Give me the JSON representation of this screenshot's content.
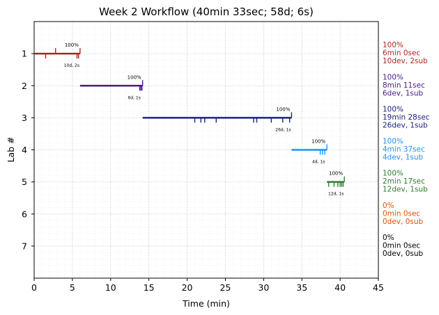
{
  "chart_data": {
    "type": "timeline",
    "title": "Week 2 Workflow (40min 33sec; 58d; 6s)",
    "xlabel": "Time (min)",
    "ylabel": "Lab #",
    "xlim": [
      0,
      45
    ],
    "ylim": [
      8,
      0
    ],
    "xticks": [
      0,
      5,
      10,
      15,
      20,
      25,
      30,
      35,
      40,
      45
    ],
    "yticks": [
      1,
      2,
      3,
      4,
      5,
      6,
      7
    ],
    "grid": true,
    "labs": [
      {
        "lab": 1,
        "color": "#b22222",
        "start": 0,
        "end": 6.0,
        "pct_label": "100%",
        "count_label": "10d, 2s",
        "summary": [
          "100%",
          "6min 0sec",
          "10dev, 2sub"
        ],
        "dev_ticks": [
          1.5,
          5.6,
          5.8
        ],
        "sub_ticks": [
          2.8,
          6.0
        ]
      },
      {
        "lab": 2,
        "color": "#4b1a8c",
        "start": 6.0,
        "end": 14.18,
        "pct_label": "100%",
        "count_label": "6d, 1s",
        "summary": [
          "100%",
          "8min 11sec",
          "6dev, 1sub"
        ],
        "dev_ticks": [
          13.8,
          13.95,
          14.1
        ],
        "sub_ticks": [
          14.18
        ]
      },
      {
        "lab": 3,
        "color": "#1a237e",
        "start": 14.18,
        "end": 33.65,
        "pct_label": "100%",
        "count_label": "26d, 1s",
        "summary": [
          "100%",
          "19min 28sec",
          "26dev, 1sub"
        ],
        "dev_ticks": [
          21.0,
          21.8,
          22.3,
          23.8,
          28.7,
          29.1,
          31.0,
          32.5,
          33.4
        ],
        "sub_ticks": [
          33.65
        ]
      },
      {
        "lab": 4,
        "color": "#1e90ff",
        "start": 33.65,
        "end": 38.27,
        "pct_label": "100%",
        "count_label": "4d, 1s",
        "summary": [
          "100%",
          "4min 37sec",
          "4dev, 1sub"
        ],
        "dev_ticks": [
          37.4,
          37.7,
          38.0
        ],
        "sub_ticks": [
          38.27
        ]
      },
      {
        "lab": 5,
        "color": "#2e7d32",
        "start": 38.27,
        "end": 40.55,
        "pct_label": "100%",
        "count_label": "12d, 1s",
        "summary": [
          "100%",
          "2min 17sec",
          "12dev, 1sub"
        ],
        "dev_ticks": [
          38.5,
          39.2,
          39.7,
          40.0,
          40.2,
          40.4
        ],
        "sub_ticks": [
          40.55
        ]
      },
      {
        "lab": 6,
        "color": "#e65100",
        "start": null,
        "end": null,
        "pct_label": "",
        "count_label": "",
        "summary": [
          "0%",
          "0min 0sec",
          "0dev, 0sub"
        ],
        "dev_ticks": [],
        "sub_ticks": []
      },
      {
        "lab": 7,
        "color": "#000000",
        "start": null,
        "end": null,
        "pct_label": "",
        "count_label": "",
        "summary": [
          "0%",
          "0min 0sec",
          "0dev, 0sub"
        ],
        "dev_ticks": [],
        "sub_ticks": []
      }
    ]
  }
}
